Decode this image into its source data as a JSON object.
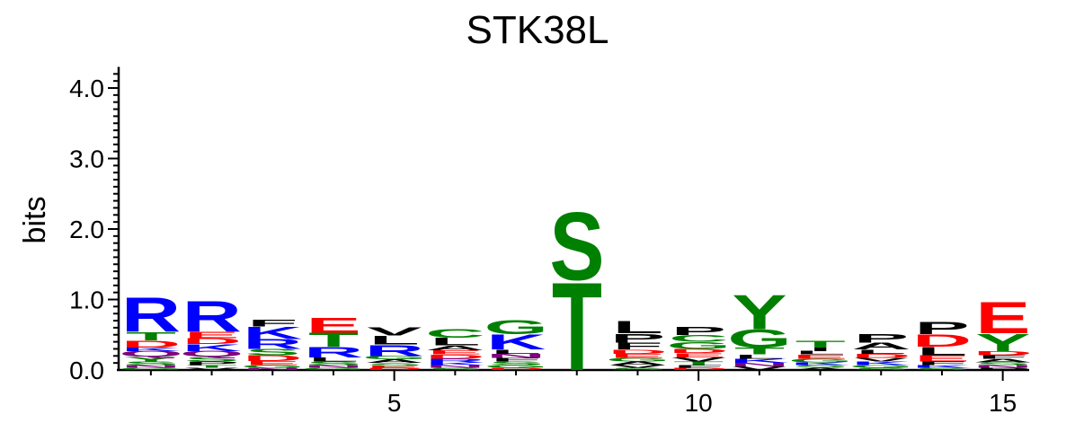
{
  "chart_data": {
    "type": "sequence-logo",
    "title": "STK38L",
    "ylabel": "bits",
    "xlabel": "",
    "ylim": [
      0,
      4.3
    ],
    "y_ticks": [
      "0.0",
      "1.0",
      "2.0",
      "3.0",
      "4.0"
    ],
    "x_ticks": [
      "5",
      "10",
      "15"
    ],
    "colors": {
      "R": "#0000ff",
      "K": "#0000ff",
      "H": "#0000ff",
      "S": "#008000",
      "T": "#008000",
      "G": "#008000",
      "Y": "#008000",
      "C": "#008000",
      "D": "#ff0000",
      "E": "#ff0000",
      "N": "#800080",
      "Q": "#800080",
      "A": "#000000",
      "V": "#000000",
      "L": "#000000",
      "I": "#000000",
      "P": "#000000",
      "F": "#000000",
      "M": "#000000",
      "W": "#000000"
    },
    "positions": [
      {
        "pos": 1,
        "letters": [
          [
            "G",
            0.03
          ],
          [
            "N",
            0.04
          ],
          [
            "S",
            0.05
          ],
          [
            "Y",
            0.07
          ],
          [
            "Q",
            0.08
          ],
          [
            "K",
            0.05
          ],
          [
            "D",
            0.1
          ],
          [
            "T",
            0.12
          ],
          [
            "R",
            0.5
          ]
        ]
      },
      {
        "pos": 2,
        "letters": [
          [
            "V",
            0.03
          ],
          [
            "T",
            0.04
          ],
          [
            "P",
            0.05
          ],
          [
            "S",
            0.07
          ],
          [
            "Q",
            0.08
          ],
          [
            "K",
            0.1
          ],
          [
            "D",
            0.08
          ],
          [
            "E",
            0.09
          ],
          [
            "R",
            0.45
          ]
        ]
      },
      {
        "pos": 3,
        "letters": [
          [
            "N",
            0.03
          ],
          [
            "G",
            0.04
          ],
          [
            "E",
            0.06
          ],
          [
            "D",
            0.08
          ],
          [
            "S",
            0.09
          ],
          [
            "R",
            0.14
          ],
          [
            "K",
            0.18
          ],
          [
            "F",
            0.1
          ]
        ]
      },
      {
        "pos": 4,
        "letters": [
          [
            "G",
            0.03
          ],
          [
            "N",
            0.04
          ],
          [
            "S",
            0.05
          ],
          [
            "L",
            0.06
          ],
          [
            "R",
            0.15
          ],
          [
            "T",
            0.2
          ],
          [
            "E",
            0.22
          ]
        ]
      },
      {
        "pos": 5,
        "letters": [
          [
            "D",
            0.03
          ],
          [
            "E",
            0.03
          ],
          [
            "S",
            0.04
          ],
          [
            "A",
            0.05
          ],
          [
            "G",
            0.05
          ],
          [
            "R",
            0.16
          ],
          [
            "L",
            0.13
          ],
          [
            "V",
            0.12
          ]
        ]
      },
      {
        "pos": 6,
        "letters": [
          [
            "S",
            0.03
          ],
          [
            "N",
            0.04
          ],
          [
            "K",
            0.04
          ],
          [
            "R",
            0.05
          ],
          [
            "D",
            0.06
          ],
          [
            "E",
            0.06
          ],
          [
            "A",
            0.07
          ],
          [
            "L",
            0.11
          ],
          [
            "C",
            0.13
          ]
        ]
      },
      {
        "pos": 7,
        "letters": [
          [
            "D",
            0.03
          ],
          [
            "G",
            0.04
          ],
          [
            "S",
            0.05
          ],
          [
            "F",
            0.05
          ],
          [
            "N",
            0.06
          ],
          [
            "L",
            0.06
          ],
          [
            "K",
            0.22
          ],
          [
            "G",
            0.2
          ]
        ]
      },
      {
        "pos": 8,
        "letters": [
          [
            "T",
            1.28
          ],
          [
            "S",
            0.98
          ]
        ]
      },
      {
        "pos": 9,
        "letters": [
          [
            "S",
            0.03
          ],
          [
            "V",
            0.04
          ],
          [
            "A",
            0.05
          ],
          [
            "G",
            0.05
          ],
          [
            "E",
            0.06
          ],
          [
            "D",
            0.06
          ],
          [
            "F",
            0.1
          ],
          [
            "P",
            0.13
          ],
          [
            "L",
            0.18
          ]
        ]
      },
      {
        "pos": 10,
        "letters": [
          [
            "D",
            0.03
          ],
          [
            "F",
            0.04
          ],
          [
            "T",
            0.05
          ],
          [
            "V",
            0.06
          ],
          [
            "E",
            0.06
          ],
          [
            "D",
            0.06
          ],
          [
            "G",
            0.1
          ],
          [
            "C",
            0.1
          ],
          [
            "P",
            0.12
          ]
        ]
      },
      {
        "pos": 11,
        "letters": [
          [
            "V",
            0.05
          ],
          [
            "N",
            0.05
          ],
          [
            "K",
            0.06
          ],
          [
            "L",
            0.06
          ],
          [
            "T",
            0.1
          ],
          [
            "G",
            0.26
          ],
          [
            "Y",
            0.5
          ]
        ]
      },
      {
        "pos": 12,
        "letters": [
          [
            "A",
            0.03
          ],
          [
            "S",
            0.04
          ],
          [
            "K",
            0.04
          ],
          [
            "G",
            0.05
          ],
          [
            "E",
            0.06
          ],
          [
            "L",
            0.05
          ],
          [
            "I",
            0.05
          ],
          [
            "T",
            0.1
          ]
        ]
      },
      {
        "pos": 13,
        "letters": [
          [
            "S",
            0.03
          ],
          [
            "G",
            0.04
          ],
          [
            "K",
            0.05
          ],
          [
            "V",
            0.05
          ],
          [
            "D",
            0.06
          ],
          [
            "L",
            0.06
          ],
          [
            "A",
            0.1
          ],
          [
            "P",
            0.13
          ]
        ]
      },
      {
        "pos": 14,
        "letters": [
          [
            "S",
            0.03
          ],
          [
            "K",
            0.04
          ],
          [
            "F",
            0.05
          ],
          [
            "E",
            0.09
          ],
          [
            "L",
            0.12
          ],
          [
            "D",
            0.18
          ],
          [
            "P",
            0.18
          ]
        ]
      },
      {
        "pos": 15,
        "letters": [
          [
            "P",
            0.03
          ],
          [
            "N",
            0.04
          ],
          [
            "S",
            0.04
          ],
          [
            "A",
            0.05
          ],
          [
            "F",
            0.05
          ],
          [
            "D",
            0.06
          ],
          [
            "Y",
            0.25
          ],
          [
            "E",
            0.46
          ]
        ]
      }
    ]
  }
}
